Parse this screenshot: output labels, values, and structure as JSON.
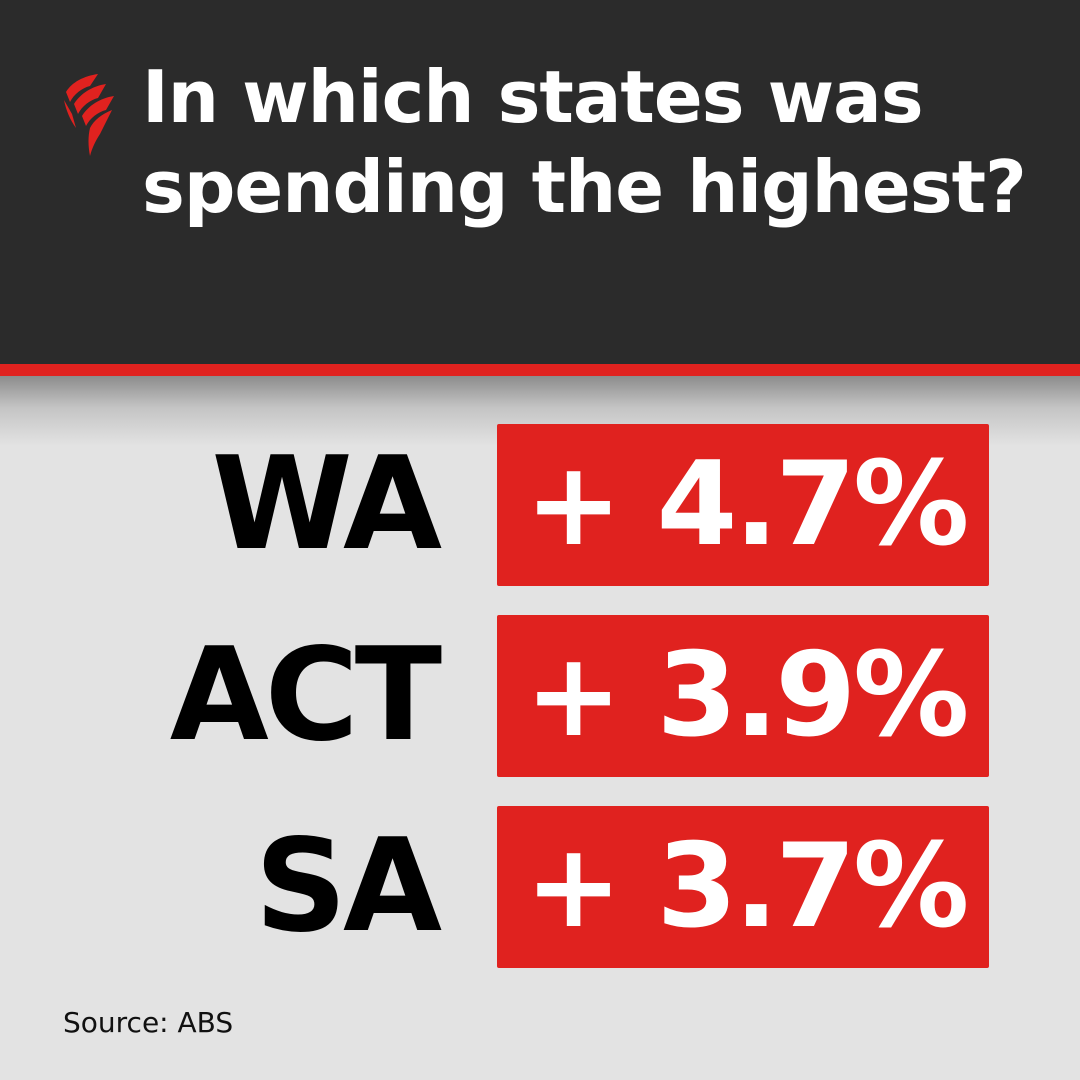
{
  "header": {
    "logo_icon": "sbs-logo-icon",
    "title_lines": [
      "In which states was",
      "spending the highest?"
    ]
  },
  "rows": [
    {
      "state": "WA",
      "value": "+ 4.7%"
    },
    {
      "state": "ACT",
      "value": "+ 3.9%"
    },
    {
      "state": "SA",
      "value": "+ 3.7%"
    }
  ],
  "footer": {
    "source": "Source: ABS"
  },
  "colors": {
    "header_bg": "#2b2b2b",
    "accent_red": "#e0221f",
    "page_bg": "#e3e3e3",
    "title_text": "#ffffff",
    "state_text": "#000000"
  }
}
